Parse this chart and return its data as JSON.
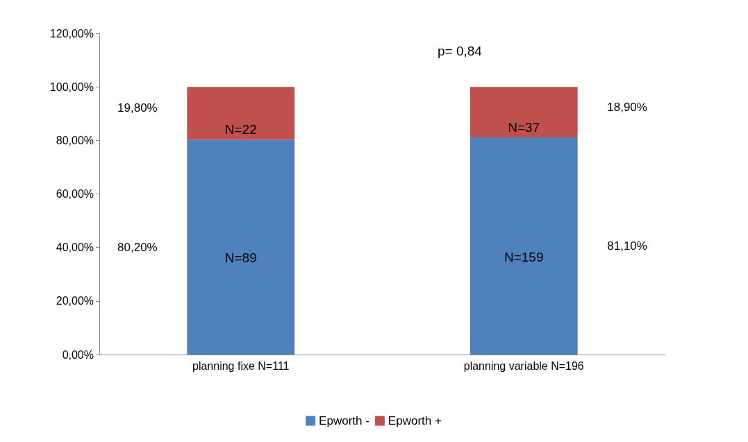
{
  "chart_data": {
    "type": "bar",
    "stacked": true,
    "categories": [
      "planning fixe N=111",
      "planning variable N=196"
    ],
    "series": [
      {
        "name": "Epworth -",
        "color": "#4f81bd",
        "values": [
          80.2,
          81.1
        ]
      },
      {
        "name": "Epworth +",
        "color": "#c0504d",
        "values": [
          19.8,
          18.9
        ]
      }
    ],
    "ylim": [
      0,
      120
    ],
    "yticks": [
      {
        "value": 0,
        "label": "0,00%"
      },
      {
        "value": 20,
        "label": "20,00%"
      },
      {
        "value": 40,
        "label": "40,00%"
      },
      {
        "value": 60,
        "label": "60,00%"
      },
      {
        "value": 80,
        "label": "80,00%"
      },
      {
        "value": 100,
        "label": "100,00%"
      },
      {
        "value": 120,
        "label": "120,00%"
      }
    ],
    "annotations": [
      "p= 0,84",
      "N=89",
      "N=159",
      "N=22",
      "N=37",
      "80,20%",
      "81,10%",
      "19,80%",
      "18,90%"
    ],
    "grid": false,
    "legend": "bottom"
  }
}
